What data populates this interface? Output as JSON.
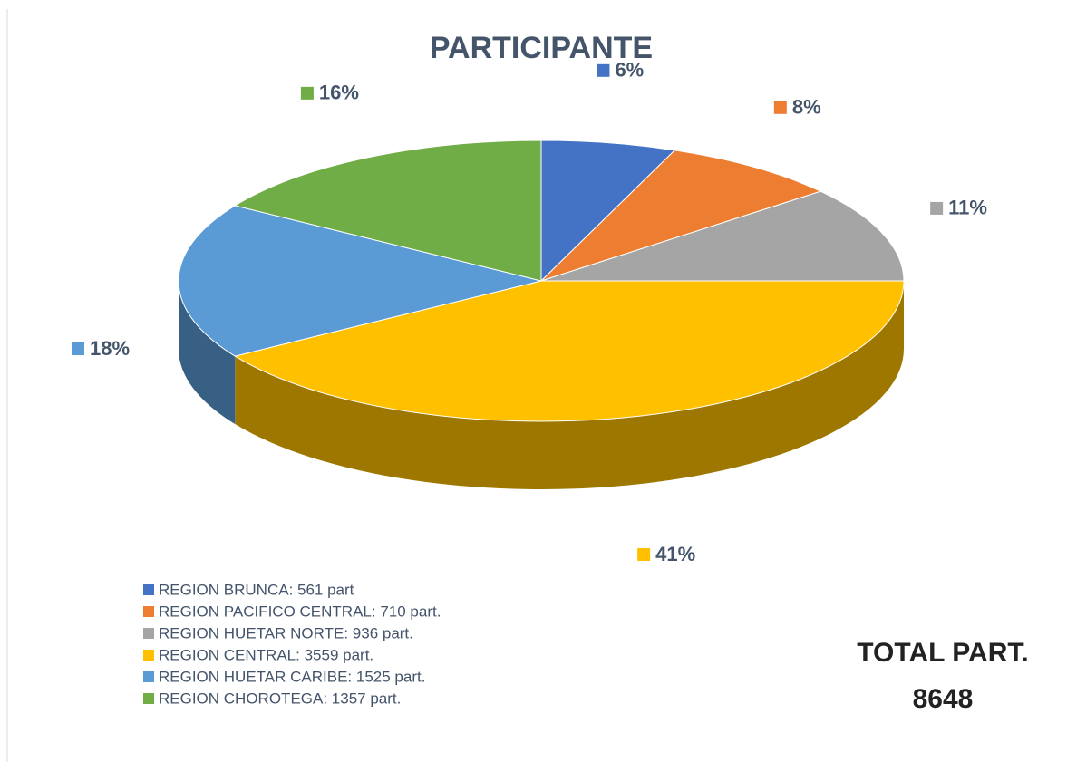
{
  "chart_data": {
    "type": "pie",
    "title": "PARTICIPANTE",
    "categories": [
      "REGION BRUNCA: 561 part",
      "REGION PACIFICO CENTRAL: 710 part.",
      "REGION HUETAR NORTE: 936 part.",
      "REGION CENTRAL: 3559 part.",
      "REGION HUETAR CARIBE: 1525 part.",
      "REGION CHOROTEGA: 1357 part."
    ],
    "values": [
      6,
      8,
      11,
      41,
      18,
      16
    ],
    "value_labels": [
      "6%",
      "8%",
      "11%",
      "41%",
      "18%",
      "16%"
    ],
    "colors": [
      "#4472c4",
      "#ed7d31",
      "#a5a5a5",
      "#ffc000",
      "#5b9bd5",
      "#70ad47"
    ],
    "legend": "bottom-left",
    "annotations": [
      "TOTAL PART.",
      "8648"
    ]
  }
}
